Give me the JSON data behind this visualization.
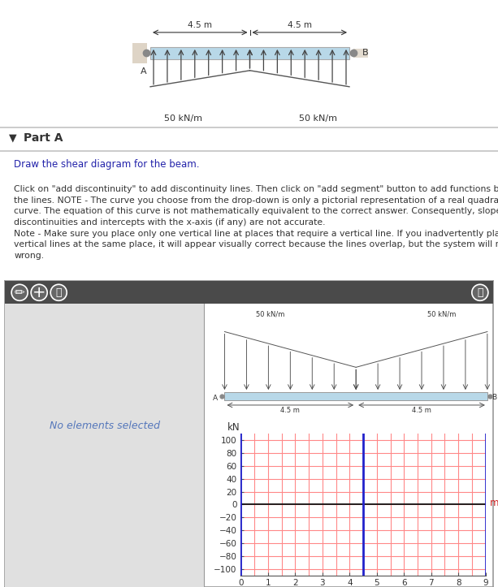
{
  "part_label": "Part A",
  "draw_instruction": "Draw the shear diagram for the beam.",
  "note1": "Click on \"add discontinuity\" to add discontinuity lines. Then click on \"add segment\" button to add functions between\nthe lines. NOTE - The curve you choose from the drop-down is only a pictorial representation of a real quadratic/cubi\ncurve. The equation of this curve is not mathematically equivalent to the correct answer. Consequently, slopes at\ndiscontinuities and intercepts with the x-axis (if any) are not accurate.",
  "note2": "Note - Make sure you place only one vertical line at places that require a vertical line. If you inadvertently place two\nvertical lines at the same place, it will appear visually correct because the lines overlap, but the system will mark it\nwrong.",
  "no_elements_text": "No elements selected",
  "ylabel": "kN",
  "xlabel": "m",
  "ylim": [
    -110,
    110
  ],
  "xlim": [
    0,
    9
  ],
  "yticks": [
    -100,
    -80,
    -60,
    -40,
    -20,
    0,
    20,
    40,
    60,
    80,
    100
  ],
  "xticks": [
    0,
    1,
    2,
    3,
    4,
    5,
    6,
    7,
    8,
    9
  ],
  "blue_vlines": [
    0,
    4.5,
    9
  ],
  "grid_color": "#ff8888",
  "vline_color": "#2222cc",
  "toolbar_color": "#4a4a4a",
  "left_panel_color": "#e0e0e0",
  "page_bg": "#ffffff",
  "beam_label_45m": "4.5 m",
  "beam_50kn": "50 kN/m",
  "beam_bg": "#b8d8e8",
  "part_header_bg": "#f0f0f0",
  "panel_border": "#999999"
}
